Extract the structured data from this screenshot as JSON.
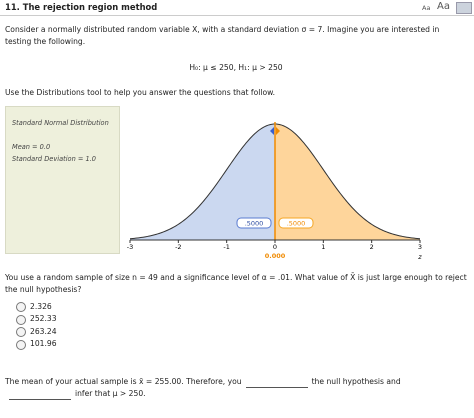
{
  "header": {
    "title": "11. The rejection region method",
    "font_small": "Aa",
    "font_large": "Aa"
  },
  "intro": "Consider a normally distributed random variable X, with a standard deviation σ = 7. Imagine you are interested in testing the following.",
  "hypotheses": "H₀: μ ≤ 250, H₁: μ > 250",
  "instruction": "Use the Distributions tool to help you answer the questions that follow.",
  "tool": {
    "panel_title": "Standard Normal Distribution",
    "mean_text": "Mean = 0.0",
    "sd_text": "Standard Deviation = 1.0",
    "xlim": [
      -3,
      3
    ],
    "xticks": [
      -3,
      -2,
      -1,
      0,
      1,
      2,
      3
    ],
    "axis_label": "z",
    "cutoff": {
      "value": 0,
      "label": "0.000"
    },
    "left_area": ".5000",
    "right_area": ".5000"
  },
  "question": "You use a random sample of size n = 49 and a significance level of α = .01. What value of X̄ is just large enough to reject the null hypothesis?",
  "options": [
    "2.326",
    "252.33",
    "263.24",
    "101.96"
  ],
  "conclusion": {
    "part1": "The mean of your actual sample is x̄ = 255.00. Therefore, you",
    "part2": "the null hypothesis and",
    "part3": "infer that μ > 250."
  }
}
